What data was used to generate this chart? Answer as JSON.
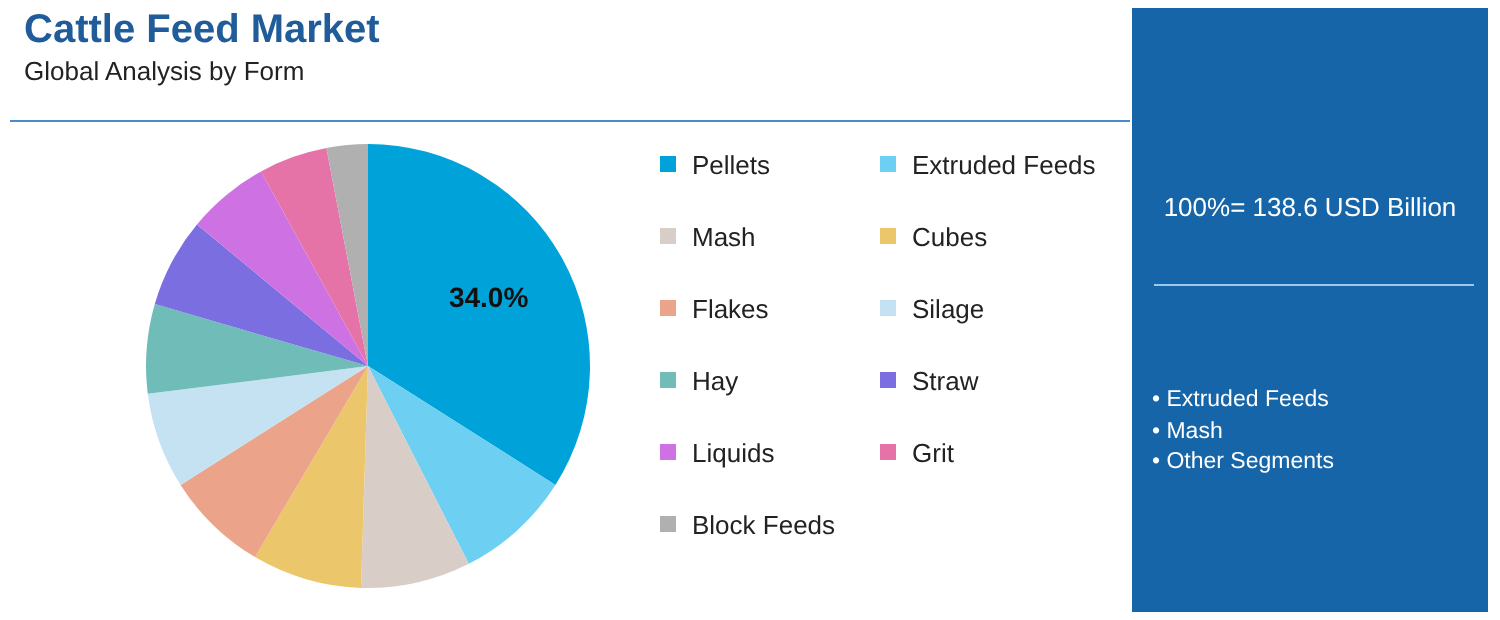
{
  "chart_data": {
    "type": "pie",
    "title": "Cattle Feed Market",
    "subtitle": "Global Analysis by Form",
    "categories": [
      "Pellets",
      "Extruded Feeds",
      "Mash",
      "Cubes",
      "Flakes",
      "Silage",
      "Hay",
      "Straw",
      "Liquids",
      "Grit",
      "Block Feeds"
    ],
    "values": [
      34.0,
      8.5,
      8,
      8,
      7.5,
      7,
      6.5,
      6.5,
      6,
      5,
      3
    ],
    "colors": [
      "#00a3d9",
      "#6dcff2",
      "#d9cdc8",
      "#ecc66a",
      "#eba38a",
      "#c5e2f2",
      "#6fbcb8",
      "#7a6ee0",
      "#cd71e3",
      "#e573a8",
      "#b0b0b0"
    ],
    "value_labels": [
      "34.0%",
      null,
      null,
      null,
      null,
      null,
      null,
      null,
      null,
      null,
      null
    ],
    "legend": "right",
    "annotations": [
      "100%= 138.6 USD Billion",
      "• Extruded Feeds",
      "• Mash",
      "• Other Segments"
    ]
  }
}
